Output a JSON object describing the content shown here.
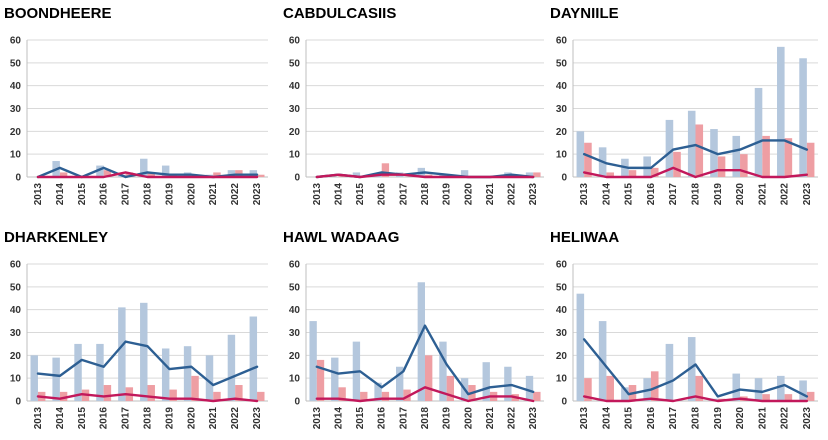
{
  "colors": {
    "bar_blue": "#b4c7dd",
    "bar_red": "#ee9ea3",
    "line_blue": "#2d5f93",
    "line_red": "#c2185b"
  },
  "chart_data": [
    {
      "type": "bar+line",
      "title": "BOONDHEERE",
      "categories": [
        "2013",
        "2014",
        "2015",
        "2016",
        "2017",
        "2018",
        "2019",
        "2020",
        "2021",
        "2022",
        "2023"
      ],
      "ylim": [
        0,
        60
      ],
      "yticks": [
        0,
        10,
        20,
        30,
        40,
        50,
        60
      ],
      "grid": true,
      "series": [
        {
          "name": "bar_blue",
          "kind": "bar",
          "values": [
            0,
            7,
            0,
            5,
            1,
            8,
            5,
            2,
            1,
            3,
            3
          ]
        },
        {
          "name": "bar_red",
          "kind": "bar",
          "values": [
            0,
            2,
            0,
            3,
            2,
            2,
            1,
            1,
            2,
            3,
            1
          ]
        },
        {
          "name": "line_blue",
          "kind": "line",
          "values": [
            0,
            4,
            0,
            4,
            0,
            2,
            1,
            1,
            0,
            1,
            1
          ]
        },
        {
          "name": "line_red",
          "kind": "line",
          "values": [
            0,
            0,
            0,
            0,
            2,
            0,
            0,
            0,
            0,
            0,
            0
          ]
        }
      ]
    },
    {
      "type": "bar+line",
      "title": "CABDULCASIIS",
      "categories": [
        "2013",
        "2014",
        "2015",
        "2016",
        "2017",
        "2018",
        "2019",
        "2020",
        "2021",
        "2022",
        "2023"
      ],
      "ylim": [
        0,
        60
      ],
      "yticks": [
        0,
        10,
        20,
        30,
        40,
        50,
        60
      ],
      "grid": true,
      "series": [
        {
          "name": "bar_blue",
          "kind": "bar",
          "values": [
            0,
            0,
            2,
            1,
            2,
            4,
            1,
            3,
            0,
            2,
            2
          ]
        },
        {
          "name": "bar_red",
          "kind": "bar",
          "values": [
            0,
            1,
            0,
            6,
            0,
            1,
            0,
            0,
            0,
            1,
            2
          ]
        },
        {
          "name": "line_blue",
          "kind": "line",
          "values": [
            0,
            1,
            0,
            2,
            1,
            2,
            1,
            0,
            0,
            1,
            0
          ]
        },
        {
          "name": "line_red",
          "kind": "line",
          "values": [
            0,
            1,
            0,
            1,
            1,
            0,
            0,
            0,
            0,
            0,
            0
          ]
        }
      ]
    },
    {
      "type": "bar+line",
      "title": "DAYNIILE",
      "categories": [
        "2013",
        "2014",
        "2015",
        "2016",
        "2017",
        "2018",
        "2019",
        "2020",
        "2021",
        "2022",
        "2023"
      ],
      "ylim": [
        0,
        60
      ],
      "yticks": [
        0,
        10,
        20,
        30,
        40,
        50,
        60
      ],
      "grid": true,
      "series": [
        {
          "name": "bar_blue",
          "kind": "bar",
          "values": [
            20,
            13,
            8,
            9,
            25,
            29,
            21,
            18,
            39,
            57,
            52
          ]
        },
        {
          "name": "bar_red",
          "kind": "bar",
          "values": [
            15,
            2,
            3,
            4,
            11,
            23,
            9,
            10,
            18,
            17,
            15
          ]
        },
        {
          "name": "line_blue",
          "kind": "line",
          "values": [
            10,
            6,
            4,
            4,
            12,
            14,
            10,
            12,
            16,
            16,
            12
          ]
        },
        {
          "name": "line_red",
          "kind": "line",
          "values": [
            2,
            0,
            0,
            0,
            4,
            0,
            3,
            3,
            0,
            0,
            1
          ]
        }
      ]
    },
    {
      "type": "bar+line",
      "title": "DHARKENLEY",
      "categories": [
        "2013",
        "2014",
        "2015",
        "2016",
        "2017",
        "2018",
        "2019",
        "2020",
        "2021",
        "2022",
        "2023"
      ],
      "ylim": [
        0,
        60
      ],
      "yticks": [
        0,
        10,
        20,
        30,
        40,
        50,
        60
      ],
      "grid": true,
      "series": [
        {
          "name": "bar_blue",
          "kind": "bar",
          "values": [
            20,
            19,
            25,
            25,
            41,
            43,
            23,
            24,
            20,
            29,
            37
          ]
        },
        {
          "name": "bar_red",
          "kind": "bar",
          "values": [
            4,
            4,
            5,
            7,
            6,
            7,
            5,
            11,
            4,
            7,
            4
          ]
        },
        {
          "name": "line_blue",
          "kind": "line",
          "values": [
            12,
            11,
            18,
            15,
            26,
            24,
            14,
            15,
            7,
            11,
            15
          ]
        },
        {
          "name": "line_red",
          "kind": "line",
          "values": [
            2,
            1,
            3,
            2,
            3,
            2,
            1,
            1,
            0,
            1,
            0
          ]
        }
      ]
    },
    {
      "type": "bar+line",
      "title": "HAWL WADAAG",
      "categories": [
        "2013",
        "2014",
        "2015",
        "2016",
        "2017",
        "2018",
        "2019",
        "2020",
        "2021",
        "2022",
        "2023"
      ],
      "ylim": [
        0,
        60
      ],
      "yticks": [
        0,
        10,
        20,
        30,
        40,
        50,
        60
      ],
      "grid": true,
      "series": [
        {
          "name": "bar_blue",
          "kind": "bar",
          "values": [
            35,
            19,
            26,
            8,
            15,
            52,
            26,
            10,
            17,
            15,
            11
          ]
        },
        {
          "name": "bar_red",
          "kind": "bar",
          "values": [
            18,
            6,
            4,
            4,
            5,
            20,
            11,
            7,
            4,
            3,
            4
          ]
        },
        {
          "name": "line_blue",
          "kind": "line",
          "values": [
            15,
            12,
            13,
            6,
            13,
            33,
            16,
            3,
            6,
            7,
            4
          ]
        },
        {
          "name": "line_red",
          "kind": "line",
          "values": [
            1,
            1,
            0,
            1,
            1,
            6,
            3,
            0,
            2,
            2,
            0
          ]
        }
      ]
    },
    {
      "type": "bar+line",
      "title": "HELIWAA",
      "categories": [
        "2013",
        "2014",
        "2015",
        "2016",
        "2017",
        "2018",
        "2019",
        "2020",
        "2021",
        "2022",
        "2023"
      ],
      "ylim": [
        0,
        60
      ],
      "yticks": [
        0,
        10,
        20,
        30,
        40,
        50,
        60
      ],
      "grid": true,
      "series": [
        {
          "name": "bar_blue",
          "kind": "bar",
          "values": [
            47,
            35,
            6,
            10,
            25,
            28,
            1,
            12,
            10,
            11,
            9
          ]
        },
        {
          "name": "bar_red",
          "kind": "bar",
          "values": [
            10,
            11,
            7,
            13,
            0,
            11,
            1,
            2,
            3,
            3,
            4
          ]
        },
        {
          "name": "line_blue",
          "kind": "line",
          "values": [
            27,
            15,
            3,
            5,
            9,
            16,
            2,
            5,
            4,
            7,
            2
          ]
        },
        {
          "name": "line_red",
          "kind": "line",
          "values": [
            2,
            0,
            0,
            1,
            0,
            2,
            0,
            1,
            0,
            0,
            0
          ]
        }
      ]
    }
  ]
}
